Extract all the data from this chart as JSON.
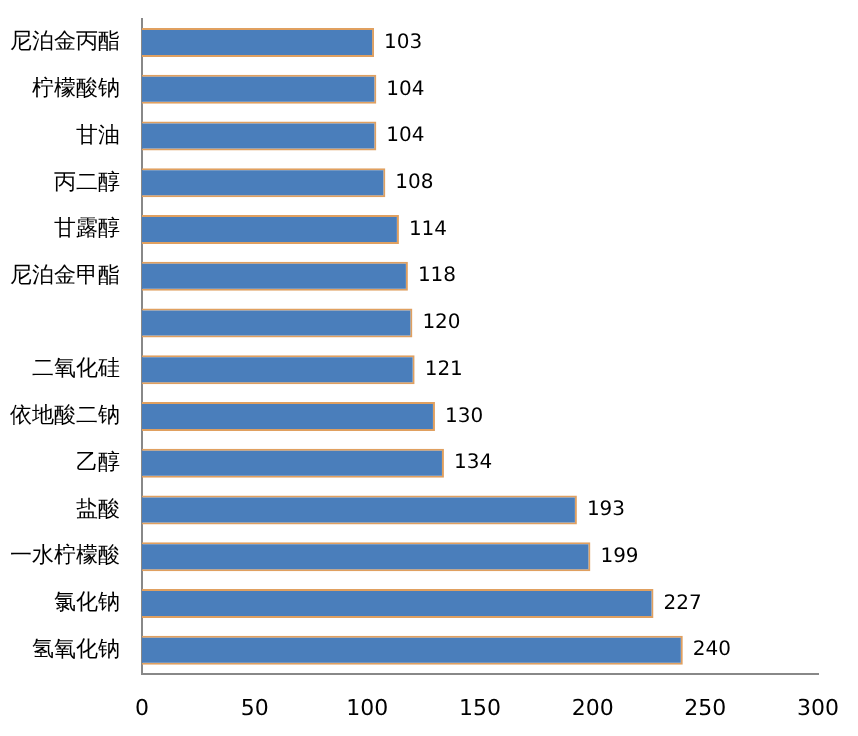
{
  "chart_data": {
    "type": "bar",
    "orientation": "horizontal",
    "categories": [
      "尼泊金丙酯",
      "柠檬酸钠",
      "甘油",
      "丙二醇",
      "甘露醇",
      "尼泊金甲酯",
      null,
      "二氧化硅",
      "依地酸二钠",
      "乙醇",
      "盐酸",
      "一水柠檬酸",
      "氯化钠",
      "氢氧化钠"
    ],
    "values": [
      103,
      104,
      104,
      108,
      114,
      118,
      120,
      121,
      130,
      134,
      193,
      199,
      227,
      240
    ],
    "color": "#4a7ebb",
    "xlim": [
      0,
      300
    ],
    "xticks": [
      0,
      50,
      100,
      150,
      200,
      250,
      300
    ],
    "grid": false,
    "legend": false,
    "data_labels": true
  }
}
